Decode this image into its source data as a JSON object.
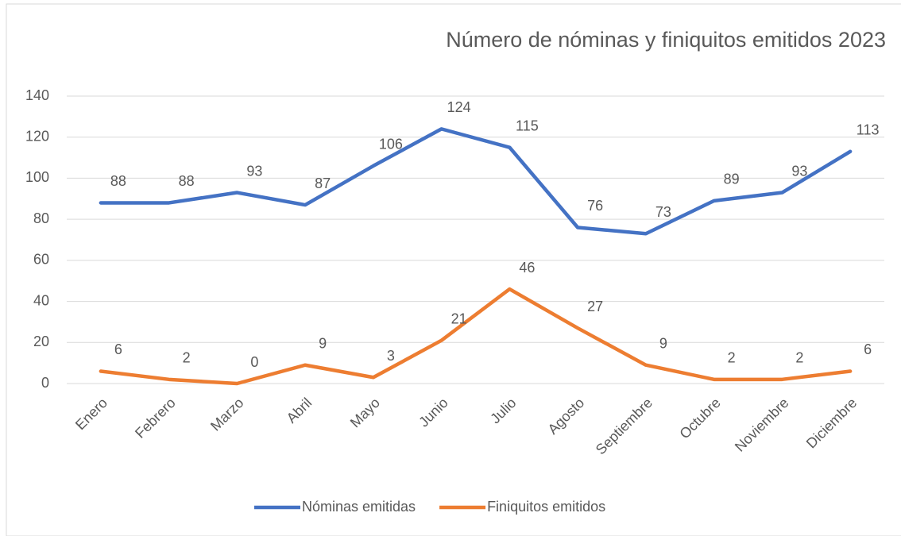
{
  "chart_data": {
    "type": "line",
    "title": "Número de nóminas y finiquitos emitidos 2023",
    "categories": [
      "Enero",
      "Febrero",
      "Marzo",
      "Abril",
      "Mayo",
      "Junio",
      "Julio",
      "Agosto",
      "Septiembre",
      "Octubre",
      "Noviembre",
      "Diciembre"
    ],
    "series": [
      {
        "name": "Nóminas emitidas",
        "color": "#4472c4",
        "values": [
          88,
          88,
          93,
          87,
          106,
          124,
          115,
          76,
          73,
          89,
          93,
          113
        ]
      },
      {
        "name": "Finiquitos emitidos",
        "color": "#ed7d31",
        "values": [
          6,
          2,
          0,
          9,
          3,
          21,
          46,
          27,
          9,
          2,
          2,
          6
        ]
      }
    ],
    "ylim": [
      0,
      140
    ],
    "yticks": [
      0,
      20,
      40,
      60,
      80,
      100,
      120,
      140
    ],
    "grid": true,
    "legend": "bottom"
  }
}
